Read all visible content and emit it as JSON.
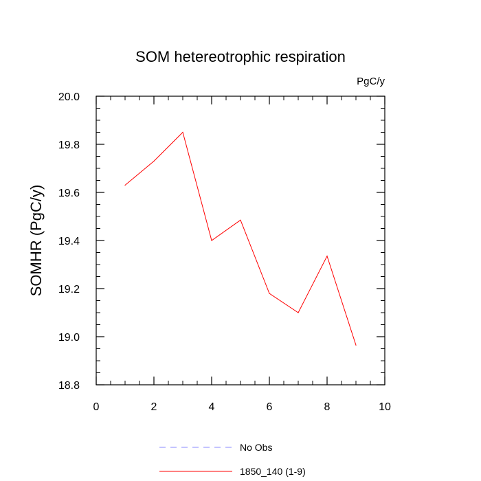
{
  "chart_data": {
    "type": "line",
    "title": "SOM hetereotrophic respiration",
    "units": "PgC/y",
    "ylabel": "SOMHR  (PgC/y)",
    "xlabel": "",
    "xlim": [
      0,
      10
    ],
    "ylim": [
      18.8,
      20.0
    ],
    "xticks": [
      0,
      2,
      4,
      6,
      8,
      10
    ],
    "xtick_labels": [
      "0",
      "2",
      "4",
      "6",
      "8",
      "10"
    ],
    "yticks": [
      18.8,
      19.0,
      19.2,
      19.4,
      19.6,
      19.8,
      20.0
    ],
    "ytick_labels": [
      "18.8",
      "19.0",
      "19.2",
      "19.4",
      "19.6",
      "19.8",
      "20.0"
    ],
    "grid": false,
    "series": [
      {
        "name": "1850_140 (1-9)",
        "color": "#ff0000",
        "style": "solid",
        "x": [
          1,
          2,
          3,
          4,
          5,
          6,
          7,
          8,
          9
        ],
        "y": [
          19.63,
          19.73,
          19.85,
          19.4,
          19.485,
          19.18,
          19.1,
          19.335,
          18.965
        ]
      }
    ],
    "legend": {
      "position": "bottom",
      "entries": [
        {
          "label": "No Obs",
          "color": "#8888ff",
          "style": "dashed"
        },
        {
          "label": "1850_140 (1-9)",
          "color": "#ff0000",
          "style": "solid"
        }
      ]
    }
  }
}
